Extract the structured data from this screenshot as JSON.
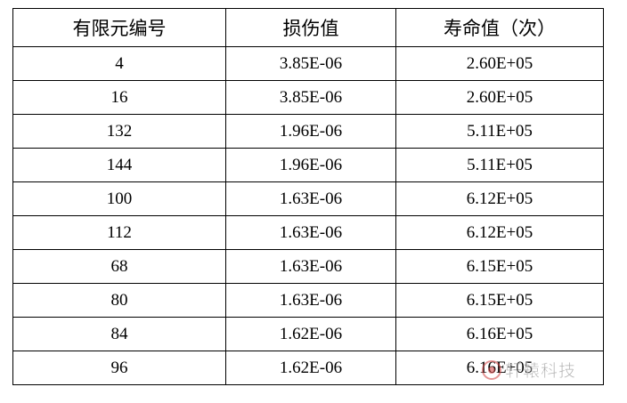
{
  "table": {
    "headers": [
      "有限元编号",
      "损伤值",
      "寿命值（次）"
    ],
    "rows": [
      [
        "4",
        "3.85E-06",
        "2.60E+05"
      ],
      [
        "16",
        "3.85E-06",
        "2.60E+05"
      ],
      [
        "132",
        "1.96E-06",
        "5.11E+05"
      ],
      [
        "144",
        "1.96E-06",
        "5.11E+05"
      ],
      [
        "100",
        "1.63E-06",
        "6.12E+05"
      ],
      [
        "112",
        "1.63E-06",
        "6.12E+05"
      ],
      [
        "68",
        "1.63E-06",
        "6.15E+05"
      ],
      [
        "80",
        "1.63E-06",
        "6.15E+05"
      ],
      [
        "84",
        "1.62E-06",
        "6.16E+05"
      ],
      [
        "96",
        "1.62E-06",
        "6.16E+05"
      ]
    ]
  },
  "watermark": {
    "text": "轩辕科技",
    "icon": "brand-logo-icon"
  }
}
